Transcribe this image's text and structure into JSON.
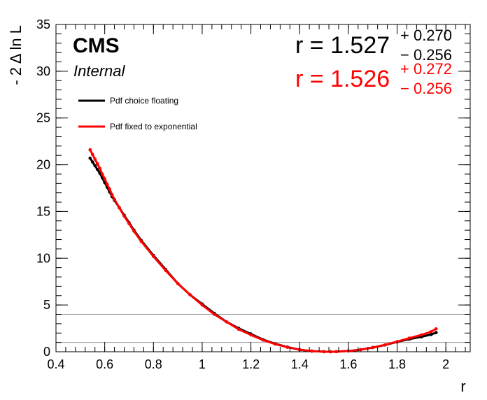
{
  "chart_data": {
    "type": "scatter",
    "title": "",
    "xlabel": "r",
    "ylabel": "- 2 Δ ln L",
    "xlim": [
      0.4,
      2.1
    ],
    "ylim": [
      0,
      35
    ],
    "x_ticks": [
      "0.4",
      "0.6",
      "0.8",
      "1",
      "1.2",
      "1.4",
      "1.6",
      "1.8",
      "2"
    ],
    "y_ticks": [
      "0",
      "5",
      "10",
      "15",
      "20",
      "25",
      "30",
      "35"
    ],
    "reference_lines": [
      1,
      4
    ],
    "experiment": "CMS",
    "status": "Internal",
    "legend_position": "top-left",
    "series": [
      {
        "name": "Pdf choice floating",
        "color": "#000000",
        "points": [
          [
            0.54,
            20.7
          ],
          [
            0.55,
            20.3
          ],
          [
            0.56,
            19.9
          ],
          [
            0.57,
            19.5
          ],
          [
            0.58,
            19.1
          ],
          [
            0.59,
            18.6
          ],
          [
            0.6,
            18.1
          ],
          [
            0.61,
            17.6
          ],
          [
            0.62,
            17.1
          ],
          [
            0.63,
            16.6
          ],
          [
            0.64,
            16.2
          ],
          [
            0.66,
            15.4
          ],
          [
            0.68,
            14.6
          ],
          [
            0.7,
            13.8
          ],
          [
            0.72,
            13.0
          ],
          [
            0.75,
            11.9
          ],
          [
            0.8,
            10.3
          ],
          [
            0.85,
            8.8
          ],
          [
            0.9,
            7.3
          ],
          [
            0.95,
            6.1
          ],
          [
            1.0,
            5.1
          ],
          [
            1.05,
            4.1
          ],
          [
            1.1,
            3.2
          ],
          [
            1.15,
            2.5
          ],
          [
            1.2,
            1.9
          ],
          [
            1.25,
            1.3
          ],
          [
            1.3,
            0.85
          ],
          [
            1.35,
            0.5
          ],
          [
            1.4,
            0.22
          ],
          [
            1.45,
            0.07
          ],
          [
            1.5,
            0.005
          ],
          [
            1.527,
            0.0
          ],
          [
            1.55,
            0.01
          ],
          [
            1.6,
            0.08
          ],
          [
            1.65,
            0.22
          ],
          [
            1.7,
            0.45
          ],
          [
            1.75,
            0.72
          ],
          [
            1.8,
            1.05
          ],
          [
            1.85,
            1.35
          ],
          [
            1.9,
            1.6
          ],
          [
            1.94,
            1.85
          ],
          [
            1.96,
            2.05
          ]
        ],
        "best_fit": "1.527",
        "err_up": "+ 0.270",
        "err_down": "− 0.256"
      },
      {
        "name": "Pdf fixed to exponential",
        "color": "#ff0000",
        "points": [
          [
            0.54,
            21.6
          ],
          [
            0.55,
            21.1
          ],
          [
            0.56,
            20.6
          ],
          [
            0.57,
            20.1
          ],
          [
            0.58,
            19.6
          ],
          [
            0.59,
            19.0
          ],
          [
            0.6,
            18.5
          ],
          [
            0.61,
            17.9
          ],
          [
            0.62,
            17.4
          ],
          [
            0.63,
            16.8
          ],
          [
            0.64,
            16.3
          ],
          [
            0.66,
            15.4
          ],
          [
            0.68,
            14.5
          ],
          [
            0.7,
            13.7
          ],
          [
            0.72,
            12.9
          ],
          [
            0.75,
            11.8
          ],
          [
            0.8,
            10.2
          ],
          [
            0.85,
            8.7
          ],
          [
            0.9,
            7.3
          ],
          [
            0.95,
            6.1
          ],
          [
            1.0,
            5.0
          ],
          [
            1.05,
            4.0
          ],
          [
            1.1,
            3.2
          ],
          [
            1.15,
            2.4
          ],
          [
            1.2,
            1.8
          ],
          [
            1.25,
            1.25
          ],
          [
            1.3,
            0.82
          ],
          [
            1.35,
            0.48
          ],
          [
            1.4,
            0.22
          ],
          [
            1.45,
            0.07
          ],
          [
            1.5,
            0.005
          ],
          [
            1.526,
            0.0
          ],
          [
            1.55,
            0.01
          ],
          [
            1.6,
            0.08
          ],
          [
            1.65,
            0.22
          ],
          [
            1.7,
            0.45
          ],
          [
            1.75,
            0.73
          ],
          [
            1.8,
            1.08
          ],
          [
            1.85,
            1.45
          ],
          [
            1.9,
            1.8
          ],
          [
            1.94,
            2.15
          ],
          [
            1.96,
            2.45
          ]
        ],
        "best_fit": "1.526",
        "err_up": "+ 0.272",
        "err_down": "− 0.256"
      }
    ]
  }
}
